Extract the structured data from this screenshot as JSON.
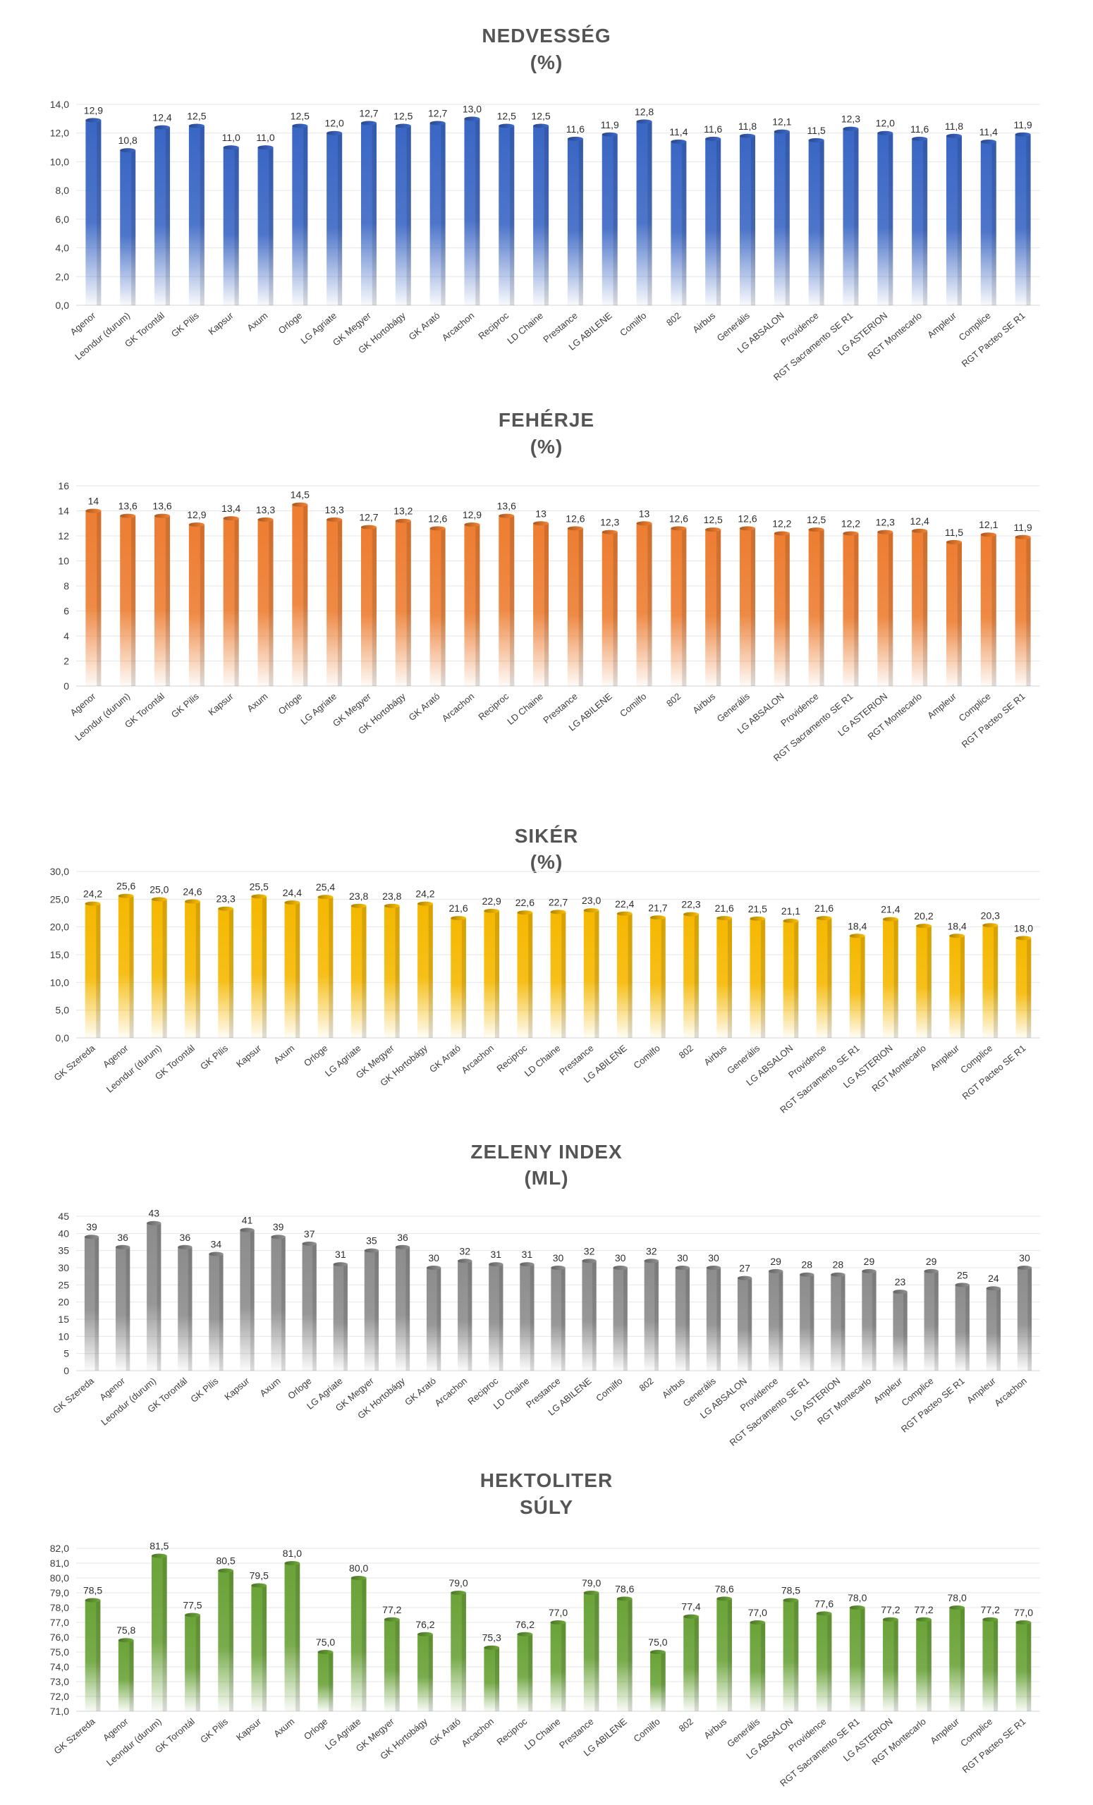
{
  "chart_data": [
    {
      "type": "bar",
      "title": [
        "NEDVESSÉG",
        "(%)"
      ],
      "color": "#3a66c4",
      "ylim": [
        0,
        14
      ],
      "yticks": [
        "0,0",
        "2,0",
        "4,0",
        "6,0",
        "8,0",
        "10,0",
        "12,0",
        "14,0"
      ],
      "yticks_values": [
        0,
        2,
        4,
        6,
        8,
        10,
        12,
        14
      ],
      "grid": true,
      "categories": [
        "Agenor",
        "Leondur (durum)",
        "GK Torontál",
        "GK Pilis",
        "Kapsur",
        "Axum",
        "Orloge",
        "LG Agriate",
        "GK Megyer",
        "GK Hortobágy",
        "GK Arató",
        "Arcachon",
        "Reciproc",
        "LD Chaine",
        "Prestance",
        "LG ABILENE",
        "Comilfo",
        "802",
        "Airbus",
        "Generális",
        "LG ABSALON",
        "Providence",
        "RGT Sacramento SE R1",
        "LG ASTERION",
        "RGT Montecarlo",
        "Ampleur",
        "Complice",
        "RGT Pacteo SE R1"
      ],
      "values": [
        12.9,
        10.8,
        12.4,
        12.5,
        11.0,
        11.0,
        12.5,
        12.0,
        12.7,
        12.5,
        12.7,
        13.0,
        12.5,
        12.5,
        11.6,
        11.9,
        12.8,
        11.4,
        11.6,
        11.8,
        12.1,
        11.5,
        12.3,
        12.0,
        11.6,
        11.8,
        11.4,
        11.9
      ],
      "labels": [
        "12,9",
        "10,8",
        "12,4",
        "12,5",
        "11,0",
        "11,0",
        "12,5",
        "12,0",
        "12,7",
        "12,5",
        "12,7",
        "13,0",
        "12,5",
        "12,5",
        "11,6",
        "11,9",
        "12,8",
        "11,4",
        "11,6",
        "11,8",
        "12,1",
        "11,5",
        "12,3",
        "12,0",
        "11,6",
        "11,8",
        "11,4",
        "11,9"
      ]
    },
    {
      "type": "bar",
      "title": [
        "FEHÉRJE",
        "(%)"
      ],
      "color": "#ed7d31",
      "ylim": [
        0,
        16
      ],
      "yticks": [
        "0",
        "2",
        "4",
        "6",
        "8",
        "10",
        "12",
        "14",
        "16"
      ],
      "yticks_values": [
        0,
        2,
        4,
        6,
        8,
        10,
        12,
        14,
        16
      ],
      "grid": true,
      "categories": [
        "Agenor",
        "Leondur (durum)",
        "GK Torontál",
        "GK Pilis",
        "Kapsur",
        "Axum",
        "Orloge",
        "LG Agriate",
        "GK Megyer",
        "GK Hortobágy",
        "GK Arató",
        "Arcachon",
        "Reciproc",
        "LD Chaine",
        "Prestance",
        "LG ABILENE",
        "Comilfo",
        "802",
        "Airbus",
        "Generális",
        "LG ABSALON",
        "Providence",
        "RGT Sacramento SE R1",
        "LG ASTERION",
        "RGT Montecarlo",
        "Ampleur",
        "Complice",
        "RGT Pacteo SE R1"
      ],
      "values": [
        14,
        13.6,
        13.6,
        12.9,
        13.4,
        13.3,
        14.5,
        13.3,
        12.7,
        13.2,
        12.6,
        12.9,
        13.6,
        13,
        12.6,
        12.3,
        13,
        12.6,
        12.5,
        12.6,
        12.2,
        12.5,
        12.2,
        12.3,
        12.4,
        11.5,
        12.1,
        11.9
      ],
      "labels": [
        "14",
        "13,6",
        "13,6",
        "12,9",
        "13,4",
        "13,3",
        "14,5",
        "13,3",
        "12,7",
        "13,2",
        "12,6",
        "12,9",
        "13,6",
        "13",
        "12,6",
        "12,3",
        "13",
        "12,6",
        "12,5",
        "12,6",
        "12,2",
        "12,5",
        "12,2",
        "12,3",
        "12,4",
        "11,5",
        "12,1",
        "11,9"
      ]
    },
    {
      "type": "bar",
      "title": [
        "SIKÉR",
        "(%)"
      ],
      "color": "#f5b800",
      "ylim": [
        0,
        30
      ],
      "yticks": [
        "0,0",
        "5,0",
        "10,0",
        "15,0",
        "20,0",
        "25,0",
        "30,0"
      ],
      "yticks_values": [
        0,
        5,
        10,
        15,
        20,
        25,
        30
      ],
      "grid": true,
      "categories": [
        "GK Szereda",
        "Agenor",
        "Leondur (durum)",
        "GK Torontál",
        "GK Pilis",
        "Kapsur",
        "Axum",
        "Orloge",
        "LG Agriate",
        "GK Megyer",
        "GK Hortobágy",
        "GK Arató",
        "Arcachon",
        "Reciproc",
        "LD Chaine",
        "Prestance",
        "LG ABILENE",
        "Comilfo",
        "802",
        "Airbus",
        "Generális",
        "LG ABSALON",
        "Providence",
        "RGT Sacramento SE R1",
        "LG ASTERION",
        "RGT Montecarlo",
        "Ampleur",
        "Complice",
        "RGT Pacteo SE R1"
      ],
      "values": [
        24.2,
        25.6,
        25.0,
        24.6,
        23.3,
        25.5,
        24.4,
        25.4,
        23.8,
        23.8,
        24.2,
        21.6,
        22.9,
        22.6,
        22.7,
        23.0,
        22.4,
        21.7,
        22.3,
        21.6,
        21.5,
        21.1,
        21.6,
        18.4,
        21.4,
        20.2,
        18.4,
        20.3,
        18.0
      ],
      "labels": [
        "24,2",
        "25,6",
        "25,0",
        "24,6",
        "23,3",
        "25,5",
        "24,4",
        "25,4",
        "23,8",
        "23,8",
        "24,2",
        "21,6",
        "22,9",
        "22,6",
        "22,7",
        "23,0",
        "22,4",
        "21,7",
        "22,3",
        "21,6",
        "21,5",
        "21,1",
        "21,6",
        "18,4",
        "21,4",
        "20,2",
        "18,4",
        "20,3",
        "18,0"
      ]
    },
    {
      "type": "bar",
      "title": [
        "ZELENY INDEX",
        "(ML)"
      ],
      "color": "#8c8c8c",
      "ylim": [
        0,
        45
      ],
      "yticks": [
        "0",
        "5",
        "10",
        "15",
        "20",
        "25",
        "30",
        "35",
        "40",
        "45"
      ],
      "yticks_values": [
        0,
        5,
        10,
        15,
        20,
        25,
        30,
        35,
        40,
        45
      ],
      "grid": true,
      "categories": [
        "GK Szereda",
        "Agenor",
        "Leondur (durum)",
        "GK Torontál",
        "GK Pilis",
        "Kapsur",
        "Axum",
        "Orloge",
        "LG Agriate",
        "GK Megyer",
        "GK Hortobágy",
        "GK Arató",
        "Arcachon",
        "Reciproc",
        "LD Chaine",
        "Prestance",
        "LG ABILENE",
        "Comilfo",
        "802",
        "Airbus",
        "Generális",
        "LG ABSALON",
        "Providence",
        "RGT Sacramento SE R1",
        "LG ASTERION",
        "RGT Montecarlo",
        "Ampleur",
        "Complice",
        "RGT Pacteo SE R1",
        "Ampleur",
        "Arcachon"
      ],
      "values": [
        39,
        36,
        43,
        36,
        34,
        41,
        39,
        37,
        31,
        35,
        36,
        30,
        32,
        31,
        31,
        30,
        32,
        30,
        32,
        30,
        30,
        27,
        29,
        28,
        28,
        29,
        23,
        29,
        25,
        24,
        30
      ],
      "labels": [
        "39",
        "36",
        "43",
        "36",
        "34",
        "41",
        "39",
        "37",
        "31",
        "35",
        "36",
        "30",
        "32",
        "31",
        "31",
        "30",
        "32",
        "30",
        "32",
        "30",
        "30",
        "27",
        "29",
        "28",
        "28",
        "29",
        "23",
        "29",
        "25",
        "24",
        "30"
      ]
    },
    {
      "type": "bar",
      "title": [
        "HEKTOLITER",
        "SÚLY"
      ],
      "color": "#6aa338",
      "ylim": [
        71,
        82
      ],
      "yticks": [
        "71,0",
        "72,0",
        "73,0",
        "74,0",
        "75,0",
        "76,0",
        "77,0",
        "78,0",
        "79,0",
        "80,0",
        "81,0",
        "82,0"
      ],
      "yticks_values": [
        71,
        72,
        73,
        74,
        75,
        76,
        77,
        78,
        79,
        80,
        81,
        82
      ],
      "grid": true,
      "categories": [
        "GK Szereda",
        "Agenor",
        "Leondur (durum)",
        "GK Torontál",
        "GK Pilis",
        "Kapsur",
        "Axum",
        "Orloge",
        "LG Agriate",
        "GK Megyer",
        "GK Hortobágy",
        "GK Arató",
        "Arcachon",
        "Reciproc",
        "LD Chaine",
        "Prestance",
        "LG ABILENE",
        "Comilfo",
        "802",
        "Airbus",
        "Generális",
        "LG ABSALON",
        "Providence",
        "RGT Sacramento SE R1",
        "LG ASTERION",
        "RGT Montecarlo",
        "Ampleur",
        "Complice",
        "RGT Pacteo SE R1"
      ],
      "values": [
        78.5,
        75.8,
        81.5,
        77.5,
        80.5,
        79.5,
        81.0,
        75.0,
        80.0,
        77.2,
        76.2,
        79.0,
        75.3,
        76.2,
        77.0,
        79.0,
        78.6,
        75.0,
        77.4,
        78.6,
        77.0,
        78.5,
        77.6,
        78.0,
        77.2,
        77.2,
        78.0,
        77.2,
        77.0
      ],
      "labels": [
        "78,5",
        "75,8",
        "81,5",
        "77,5",
        "80,5",
        "79,5",
        "81,0",
        "75,0",
        "80,0",
        "77,2",
        "76,2",
        "79,0",
        "75,3",
        "76,2",
        "77,0",
        "79,0",
        "78,6",
        "75,0",
        "77,4",
        "78,6",
        "77,0",
        "78,5",
        "77,6",
        "78,0",
        "77,2",
        "77,2",
        "78,0",
        "77,2",
        "77,0"
      ]
    }
  ]
}
